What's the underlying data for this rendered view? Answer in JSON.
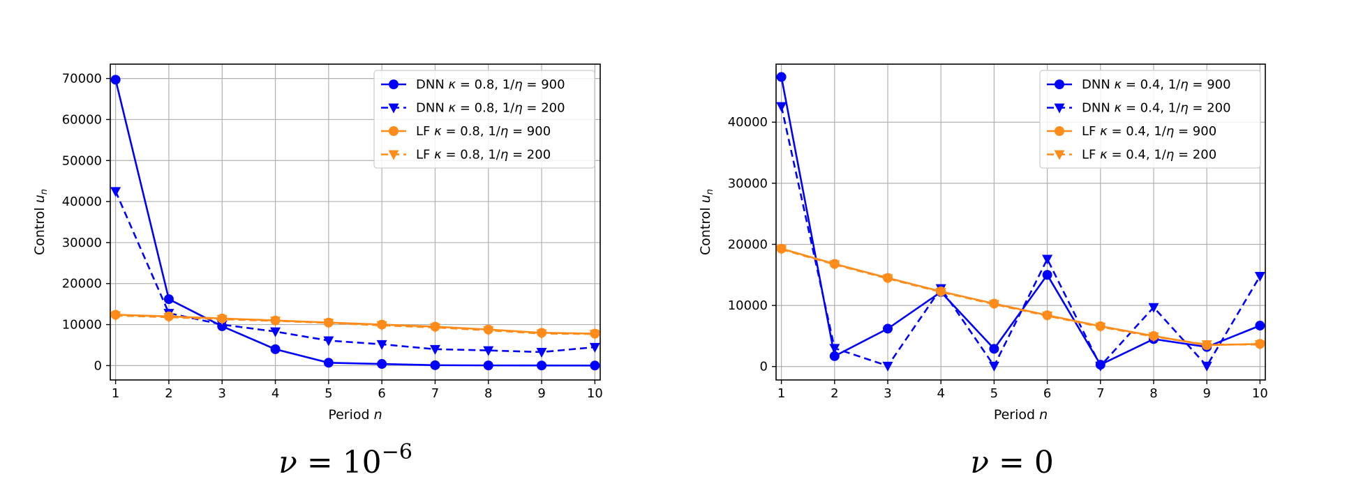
{
  "chart_data": [
    {
      "type": "line",
      "caption": "ν = 10^−6",
      "caption_lhs": "ν",
      "caption_eq": "=",
      "caption_base": "10",
      "caption_exp": "−6",
      "xlabel": "Period n",
      "ylabel": "Control u_n",
      "xlim": [
        0.9,
        10.1
      ],
      "ylim": [
        -3500,
        73500
      ],
      "x": [
        1,
        2,
        3,
        4,
        5,
        6,
        7,
        8,
        9,
        10
      ],
      "xticks": [
        "1",
        "2",
        "3",
        "4",
        "5",
        "6",
        "7",
        "8",
        "9",
        "10"
      ],
      "yticks": [
        0,
        10000,
        20000,
        30000,
        40000,
        50000,
        60000,
        70000
      ],
      "ytick_labels": [
        "0",
        "10000",
        "20000",
        "30000",
        "40000",
        "50000",
        "60000",
        "70000"
      ],
      "grid": true,
      "legend_position": "top-right",
      "series": [
        {
          "name": "DNN κ = 0.8, 1/η = 900",
          "name_parts": [
            "DNN ",
            "κ",
            " = 0.8, 1/",
            "η",
            " = 900"
          ],
          "color": "#0000ff",
          "linestyle": "solid",
          "marker": "circle",
          "values": [
            69700,
            16200,
            9600,
            4000,
            700,
            400,
            100,
            50,
            30,
            20
          ]
        },
        {
          "name": "DNN κ = 0.8, 1/η = 200",
          "name_parts": [
            "DNN ",
            "κ",
            " = 0.8, 1/",
            "η",
            " = 200"
          ],
          "color": "#0000ff",
          "linestyle": "dashed",
          "marker": "triangle-down",
          "values": [
            42500,
            12800,
            10000,
            8300,
            6100,
            5200,
            4000,
            3700,
            3300,
            4500
          ]
        },
        {
          "name": "LF κ = 0.8, 1/η = 900",
          "name_parts": [
            "LF ",
            "κ",
            " = 0.8, 1/",
            "η",
            " = 900"
          ],
          "color": "#ff8c1a",
          "linestyle": "solid",
          "marker": "circle",
          "values": [
            12400,
            12000,
            11500,
            11000,
            10500,
            10000,
            9500,
            8800,
            8000,
            7800
          ]
        },
        {
          "name": "LF κ = 0.8, 1/η = 200",
          "name_parts": [
            "LF ",
            "κ",
            " = 0.8, 1/",
            "η",
            " = 200"
          ],
          "color": "#ff8c1a",
          "linestyle": "dashed",
          "marker": "triangle-down",
          "values": [
            12200,
            11800,
            11300,
            10900,
            10400,
            9800,
            9300,
            8600,
            7800,
            7700
          ]
        }
      ]
    },
    {
      "type": "line",
      "caption": "ν = 0",
      "caption_lhs": "ν",
      "caption_eq": "=",
      "caption_base": "0",
      "caption_exp": "",
      "xlabel": "Period n",
      "ylabel": "Control u_n",
      "xlim": [
        0.9,
        10.1
      ],
      "ylim": [
        -2200,
        49500
      ],
      "x": [
        1,
        2,
        3,
        4,
        5,
        6,
        7,
        8,
        9,
        10
      ],
      "xticks": [
        "1",
        "2",
        "3",
        "4",
        "5",
        "6",
        "7",
        "8",
        "9",
        "10"
      ],
      "yticks": [
        0,
        10000,
        20000,
        30000,
        40000
      ],
      "ytick_labels": [
        "0",
        "10000",
        "20000",
        "30000",
        "40000"
      ],
      "grid": true,
      "legend_position": "top-right",
      "series": [
        {
          "name": "DNN κ = 0.4, 1/η = 900",
          "name_parts": [
            "DNN ",
            "κ",
            " = 0.4, 1/",
            "η",
            " = 900"
          ],
          "color": "#0000ff",
          "linestyle": "solid",
          "marker": "circle",
          "values": [
            47400,
            1700,
            6200,
            12200,
            2900,
            15000,
            300,
            4500,
            3200,
            6700
          ]
        },
        {
          "name": "DNN κ = 0.4, 1/η = 200",
          "name_parts": [
            "DNN ",
            "κ",
            " = 0.4, 1/",
            "η",
            " = 200"
          ],
          "color": "#0000ff",
          "linestyle": "dashed",
          "marker": "triangle-down",
          "values": [
            42600,
            3000,
            100,
            12800,
            100,
            17600,
            100,
            9700,
            100,
            14800
          ]
        },
        {
          "name": "LF κ = 0.4, 1/η = 900",
          "name_parts": [
            "LF ",
            "κ",
            " = 0.4, 1/",
            "η",
            " = 900"
          ],
          "color": "#ff8c1a",
          "linestyle": "solid",
          "marker": "circle",
          "values": [
            19300,
            16800,
            14500,
            12300,
            10300,
            8400,
            6600,
            5000,
            3500,
            3700
          ]
        },
        {
          "name": "LF κ = 0.4, 1/η = 200",
          "name_parts": [
            "LF ",
            "κ",
            " = 0.4, 1/",
            "η",
            " = 200"
          ],
          "color": "#ff8c1a",
          "linestyle": "dashed",
          "marker": "triangle-down",
          "values": [
            19200,
            16700,
            14400,
            12200,
            10200,
            8300,
            6500,
            4900,
            3600,
            3600
          ]
        }
      ]
    }
  ]
}
